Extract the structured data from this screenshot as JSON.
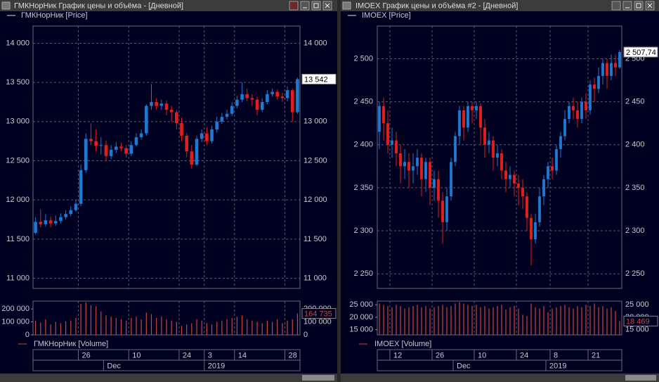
{
  "chart_data": [
    {
      "type": "candlestick",
      "window_title": "ГМКНорНик График цены и объёма - [Дневной]",
      "legend_price": "ГМКНорНик [Price]",
      "legend_volume": "ГМКНорНик [Volume]",
      "categories": [
        null,
        null,
        null,
        null,
        null,
        null,
        null,
        null,
        null,
        "26",
        null,
        null,
        null,
        null,
        null,
        null,
        null,
        null,
        null,
        "10",
        null,
        null,
        null,
        null,
        null,
        null,
        null,
        null,
        null,
        "24",
        null,
        null,
        null,
        null,
        "3",
        null,
        null,
        null,
        null,
        null,
        "14",
        null,
        null,
        null,
        null,
        null,
        null,
        null,
        null,
        null,
        "28",
        null,
        null
      ],
      "periods": [
        null,
        null,
        null,
        null,
        null,
        null,
        null,
        null,
        null,
        null,
        null,
        null,
        null,
        null,
        "Dec",
        null,
        null,
        null,
        null,
        null,
        null,
        null,
        null,
        null,
        null,
        null,
        null,
        null,
        null,
        null,
        null,
        null,
        null,
        null,
        "2019",
        null,
        null,
        null,
        null,
        null,
        null,
        null,
        null,
        null,
        null,
        null,
        null,
        null,
        null,
        null,
        null,
        null,
        null
      ],
      "open": [
        11580,
        11720,
        11690,
        11740,
        11700,
        11730,
        11780,
        11820,
        11870,
        11950,
        12380,
        12780,
        12750,
        12690,
        12700,
        12560,
        12640,
        12680,
        12660,
        12590,
        12700,
        12800,
        12850,
        13200,
        13250,
        13200,
        13230,
        13150,
        13120,
        12980,
        12820,
        12620,
        12450,
        12780,
        12850,
        12750,
        12900,
        13000,
        13060,
        13100,
        13200,
        13280,
        13350,
        13300,
        13280,
        13150,
        13250,
        13350,
        13380,
        13320,
        13300,
        13400,
        13120
      ],
      "high": [
        11780,
        11880,
        11820,
        11790,
        11800,
        11830,
        11870,
        11920,
        12000,
        12450,
        12850,
        12980,
        12900,
        12800,
        12760,
        12700,
        12740,
        12730,
        12700,
        12750,
        12850,
        12900,
        13220,
        13480,
        13300,
        13280,
        13270,
        13200,
        13150,
        13050,
        12850,
        12700,
        12820,
        12900,
        12930,
        12950,
        13060,
        13110,
        13150,
        13250,
        13330,
        13500,
        13420,
        13350,
        13320,
        13300,
        13400,
        13420,
        13410,
        13370,
        13450,
        13420,
        13560
      ],
      "low": [
        11560,
        11650,
        11660,
        11650,
        11670,
        11700,
        11750,
        11790,
        11850,
        11920,
        12350,
        12700,
        12620,
        12580,
        12500,
        12520,
        12600,
        12620,
        12540,
        12560,
        12680,
        12770,
        12820,
        13150,
        13150,
        13150,
        13080,
        13000,
        12900,
        12750,
        12550,
        12400,
        12430,
        12740,
        12700,
        12720,
        12860,
        12970,
        13030,
        13070,
        13170,
        13250,
        13260,
        13200,
        13080,
        13120,
        13220,
        13320,
        13280,
        13250,
        13260,
        13000,
        13100
      ],
      "close": [
        11720,
        11690,
        11740,
        11700,
        11730,
        11780,
        11820,
        11870,
        11950,
        12380,
        12780,
        12750,
        12690,
        12700,
        12560,
        12640,
        12680,
        12660,
        12590,
        12700,
        12800,
        12850,
        13200,
        13250,
        13200,
        13230,
        13150,
        13120,
        12980,
        12820,
        12620,
        12450,
        12780,
        12850,
        12750,
        12900,
        13000,
        13060,
        13100,
        13200,
        13280,
        13350,
        13300,
        13280,
        13150,
        13250,
        13350,
        13380,
        13320,
        13300,
        13400,
        13120,
        13542
      ],
      "volume": [
        110000,
        95000,
        120000,
        80000,
        100000,
        90000,
        105000,
        110000,
        130000,
        240000,
        250000,
        230000,
        220000,
        180000,
        150000,
        140000,
        130000,
        120000,
        110000,
        130000,
        140000,
        120000,
        170000,
        160000,
        130000,
        140000,
        120000,
        110000,
        100000,
        70000,
        80000,
        90000,
        120000,
        110000,
        90000,
        80000,
        100000,
        110000,
        120000,
        130000,
        140000,
        150000,
        120000,
        110000,
        100000,
        90000,
        110000,
        100000,
        120000,
        90000,
        110000,
        120000,
        164735
      ],
      "last_price_label": "13 542",
      "last_volume_label": "164 735",
      "ylim": [
        10870,
        14220
      ],
      "yticks": [
        {
          "value": 11000,
          "label": "11 000"
        },
        {
          "value": 11500,
          "label": "11 500"
        },
        {
          "value": 12000,
          "label": "12 000"
        },
        {
          "value": 12500,
          "label": "12 500"
        },
        {
          "value": 13000,
          "label": "13 000"
        },
        {
          "value": 13500,
          "label": "13 500"
        },
        {
          "value": 14000,
          "label": "14 000"
        }
      ],
      "volume_ylim": [
        0,
        260000
      ],
      "volume_yticks": [
        0,
        {
          "value": 100000,
          "label": "100 000"
        },
        {
          "value": 200000,
          "label": "200 000"
        }
      ],
      "up_color": "#1f78d1",
      "down_color": "#e41e1e",
      "volume_color": "#c8463c",
      "grid": true
    },
    {
      "type": "candlestick",
      "window_title": "IMOEX График цены и объёма #2 - [Дневной]",
      "legend_price": "IMOEX [Price]",
      "legend_volume": "IMOEX [Volume]",
      "categories": [
        null,
        null,
        null,
        "12",
        null,
        null,
        null,
        null,
        null,
        null,
        null,
        null,
        null,
        "26",
        null,
        null,
        null,
        null,
        null,
        null,
        null,
        null,
        null,
        "10",
        null,
        null,
        null,
        null,
        null,
        null,
        null,
        null,
        null,
        "24",
        null,
        null,
        null,
        null,
        null,
        null,
        null,
        "8",
        null,
        null,
        null,
        null,
        null,
        null,
        null,
        null,
        "21",
        null,
        null,
        null,
        null,
        null,
        null,
        null
      ],
      "periods": [
        null,
        null,
        null,
        null,
        null,
        null,
        null,
        null,
        null,
        null,
        null,
        null,
        null,
        null,
        null,
        null,
        null,
        null,
        "Dec",
        null,
        null,
        null,
        null,
        null,
        null,
        null,
        null,
        null,
        null,
        null,
        null,
        null,
        null,
        null,
        null,
        null,
        null,
        null,
        null,
        null,
        "2019",
        null,
        null,
        null,
        null,
        null,
        null,
        null,
        null,
        null,
        null,
        null,
        null,
        null,
        null,
        null,
        null,
        null
      ],
      "open": [
        2415,
        2445,
        2425,
        2400,
        2405,
        2390,
        2375,
        2380,
        2370,
        2375,
        2385,
        2360,
        2380,
        2350,
        2360,
        2335,
        2310,
        2340,
        2380,
        2410,
        2440,
        2420,
        2445,
        2440,
        2445,
        2420,
        2400,
        2405,
        2385,
        2390,
        2370,
        2360,
        2365,
        2355,
        2350,
        2340,
        2315,
        2290,
        2310,
        2340,
        2360,
        2375,
        2370,
        2395,
        2410,
        2430,
        2445,
        2440,
        2430,
        2450,
        2440,
        2470,
        2465,
        2480,
        2495,
        2480,
        2495,
        2490
      ],
      "high": [
        2450,
        2455,
        2440,
        2420,
        2415,
        2400,
        2395,
        2390,
        2390,
        2395,
        2390,
        2385,
        2385,
        2370,
        2370,
        2345,
        2350,
        2385,
        2415,
        2445,
        2445,
        2450,
        2450,
        2450,
        2448,
        2430,
        2415,
        2410,
        2400,
        2395,
        2380,
        2375,
        2370,
        2365,
        2360,
        2345,
        2320,
        2320,
        2350,
        2365,
        2380,
        2385,
        2400,
        2415,
        2440,
        2450,
        2455,
        2450,
        2455,
        2460,
        2475,
        2478,
        2490,
        2500,
        2500,
        2505,
        2505,
        2510
      ],
      "low": [
        2395,
        2405,
        2390,
        2385,
        2375,
        2355,
        2360,
        2350,
        2355,
        2365,
        2340,
        2345,
        2330,
        2335,
        2315,
        2285,
        2300,
        2335,
        2375,
        2400,
        2405,
        2415,
        2425,
        2430,
        2400,
        2385,
        2390,
        2370,
        2375,
        2360,
        2345,
        2350,
        2340,
        2330,
        2325,
        2300,
        2260,
        2285,
        2305,
        2330,
        2350,
        2360,
        2365,
        2385,
        2405,
        2425,
        2430,
        2420,
        2425,
        2430,
        2435,
        2450,
        2460,
        2470,
        2465,
        2475,
        2480,
        2488
      ],
      "close": [
        2445,
        2425,
        2400,
        2405,
        2390,
        2375,
        2380,
        2370,
        2375,
        2385,
        2360,
        2380,
        2350,
        2360,
        2335,
        2310,
        2340,
        2380,
        2410,
        2440,
        2420,
        2445,
        2440,
        2445,
        2420,
        2400,
        2405,
        2385,
        2390,
        2370,
        2360,
        2365,
        2355,
        2350,
        2340,
        2315,
        2290,
        2310,
        2340,
        2360,
        2375,
        2370,
        2395,
        2410,
        2430,
        2445,
        2440,
        2430,
        2450,
        2440,
        2470,
        2465,
        2480,
        2495,
        2480,
        2495,
        2490,
        2507.74
      ],
      "volume": [
        25500,
        25000,
        24500,
        24000,
        25000,
        24500,
        23500,
        24000,
        24500,
        25000,
        24000,
        24500,
        23500,
        24000,
        24500,
        25000,
        24000,
        24500,
        25500,
        26000,
        25500,
        25000,
        24500,
        25000,
        24000,
        24500,
        23500,
        24000,
        24500,
        25000,
        23000,
        24000,
        24500,
        23500,
        21000,
        20500,
        25500,
        24000,
        23500,
        24500,
        22000,
        23500,
        24000,
        24500,
        25000,
        24000,
        23500,
        24500,
        24000,
        25000,
        24500,
        25500,
        24000,
        24500,
        23500,
        24000,
        22500,
        18469
      ],
      "last_price_label": "2 507,74",
      "last_volume_label": "18 469",
      "ylim": [
        2233,
        2538
      ],
      "yticks": [
        {
          "value": 2250,
          "label": "2 250"
        },
        {
          "value": 2300,
          "label": "2 300"
        },
        {
          "value": 2350,
          "label": "2 350"
        },
        {
          "value": 2400,
          "label": "2 400"
        },
        {
          "value": 2450,
          "label": "2 450"
        },
        {
          "value": 2500,
          "label": "2 500"
        }
      ],
      "volume_ylim": [
        12940,
        26470
      ],
      "volume_yticks": [
        {
          "value": 15000,
          "label": "15 000"
        },
        {
          "value": 20000,
          "label": "20 000"
        },
        {
          "value": 25000,
          "label": "25 000"
        }
      ],
      "up_color": "#1f78d1",
      "down_color": "#e41e1e",
      "volume_color": "#c8463c",
      "grid": true
    }
  ]
}
